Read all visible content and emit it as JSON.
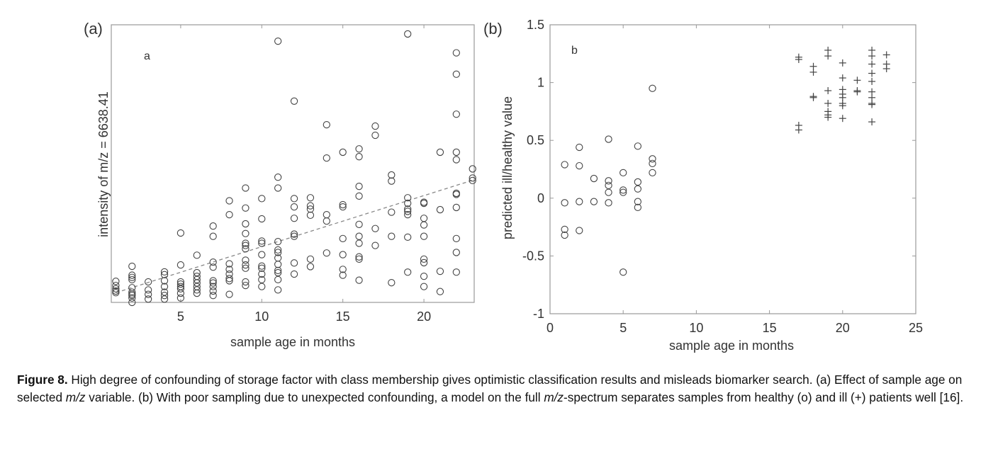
{
  "chart_data": [
    {
      "type": "scatter",
      "panel_label": "(a)",
      "inset_label": "a",
      "title": "",
      "xlabel": "sample age in months",
      "ylabel": "intensity of m/z = 6638.41",
      "xlim": [
        0.72,
        23.1
      ],
      "ylim": [
        0,
        1
      ],
      "y_units": "relative (no y tick labels shown)",
      "xticks": [
        5,
        10,
        15,
        20
      ],
      "yticks": [],
      "grid": false,
      "series": [
        {
          "name": "samples",
          "marker": "circle",
          "points": [
            [
              1,
              0.076
            ],
            [
              1,
              0.061
            ],
            [
              1,
              0.049
            ],
            [
              1,
              0.041
            ],
            [
              1,
              0.035
            ],
            [
              2,
              0.13
            ],
            [
              2,
              0.098
            ],
            [
              2,
              0.09
            ],
            [
              2,
              0.082
            ],
            [
              2,
              0.053
            ],
            [
              2,
              0.037
            ],
            [
              2,
              0.03
            ],
            [
              2,
              0.025
            ],
            [
              2,
              0.016
            ],
            [
              2,
              0.0
            ],
            [
              3,
              0.074
            ],
            [
              3,
              0.045
            ],
            [
              3,
              0.029
            ],
            [
              3,
              0.012
            ],
            [
              4,
              0.11
            ],
            [
              4,
              0.1
            ],
            [
              4,
              0.078
            ],
            [
              4,
              0.057
            ],
            [
              4,
              0.037
            ],
            [
              4,
              0.025
            ],
            [
              4,
              0.012
            ],
            [
              5,
              0.25
            ],
            [
              5,
              0.135
            ],
            [
              5,
              0.074
            ],
            [
              5,
              0.066
            ],
            [
              5,
              0.057
            ],
            [
              5,
              0.049
            ],
            [
              5,
              0.033
            ],
            [
              5,
              0.016
            ],
            [
              6,
              0.17
            ],
            [
              6,
              0.107
            ],
            [
              6,
              0.094
            ],
            [
              6,
              0.082
            ],
            [
              6,
              0.07
            ],
            [
              6,
              0.057
            ],
            [
              6,
              0.045
            ],
            [
              6,
              0.033
            ],
            [
              7,
              0.275
            ],
            [
              7,
              0.238
            ],
            [
              7,
              0.145
            ],
            [
              7,
              0.127
            ],
            [
              7,
              0.078
            ],
            [
              7,
              0.07
            ],
            [
              7,
              0.057
            ],
            [
              7,
              0.041
            ],
            [
              7,
              0.025
            ],
            [
              8,
              0.366
            ],
            [
              8,
              0.316
            ],
            [
              8,
              0.139
            ],
            [
              8,
              0.119
            ],
            [
              8,
              0.102
            ],
            [
              8,
              0.086
            ],
            [
              8,
              0.078
            ],
            [
              8,
              0.029
            ],
            [
              9,
              0.412
            ],
            [
              9,
              0.34
            ],
            [
              9,
              0.283
            ],
            [
              9,
              0.248
            ],
            [
              9,
              0.213
            ],
            [
              9,
              0.205
            ],
            [
              9,
              0.193
            ],
            [
              9,
              0.152
            ],
            [
              9,
              0.135
            ],
            [
              9,
              0.123
            ],
            [
              9,
              0.074
            ],
            [
              9,
              0.061
            ],
            [
              10,
              0.374
            ],
            [
              10,
              0.301
            ],
            [
              10,
              0.221
            ],
            [
              10,
              0.213
            ],
            [
              10,
              0.172
            ],
            [
              10,
              0.131
            ],
            [
              10,
              0.123
            ],
            [
              10,
              0.102
            ],
            [
              10,
              0.082
            ],
            [
              10,
              0.057
            ],
            [
              11,
              0.941
            ],
            [
              11,
              0.451
            ],
            [
              11,
              0.412
            ],
            [
              11,
              0.219
            ],
            [
              11,
              0.189
            ],
            [
              11,
              0.18
            ],
            [
              11,
              0.16
            ],
            [
              11,
              0.137
            ],
            [
              11,
              0.115
            ],
            [
              11,
              0.107
            ],
            [
              11,
              0.082
            ],
            [
              11,
              0.045
            ],
            [
              12,
              0.725
            ],
            [
              12,
              0.374
            ],
            [
              12,
              0.344
            ],
            [
              12,
              0.303
            ],
            [
              12,
              0.246
            ],
            [
              12,
              0.238
            ],
            [
              12,
              0.142
            ],
            [
              12,
              0.102
            ],
            [
              13,
              0.377
            ],
            [
              13,
              0.348
            ],
            [
              13,
              0.336
            ],
            [
              13,
              0.314
            ],
            [
              13,
              0.156
            ],
            [
              13,
              0.129
            ],
            [
              14,
              0.64
            ],
            [
              14,
              0.52
            ],
            [
              14,
              0.316
            ],
            [
              14,
              0.293
            ],
            [
              14,
              0.178
            ],
            [
              15,
              0.541
            ],
            [
              15,
              0.352
            ],
            [
              15,
              0.344
            ],
            [
              15,
              0.23
            ],
            [
              15,
              0.172
            ],
            [
              15,
              0.119
            ],
            [
              15,
              0.098
            ],
            [
              16,
              0.553
            ],
            [
              16,
              0.525
            ],
            [
              16,
              0.418
            ],
            [
              16,
              0.383
            ],
            [
              16,
              0.281
            ],
            [
              16,
              0.238
            ],
            [
              16,
              0.213
            ],
            [
              16,
              0.164
            ],
            [
              16,
              0.156
            ],
            [
              16,
              0.08
            ],
            [
              17,
              0.635
            ],
            [
              17,
              0.602
            ],
            [
              17,
              0.266
            ],
            [
              17,
              0.205
            ],
            [
              18,
              0.459
            ],
            [
              18,
              0.437
            ],
            [
              18,
              0.325
            ],
            [
              18,
              0.238
            ],
            [
              18,
              0.071
            ],
            [
              19,
              0.967
            ],
            [
              19,
              0.377
            ],
            [
              19,
              0.357
            ],
            [
              19,
              0.336
            ],
            [
              19,
              0.328
            ],
            [
              19,
              0.316
            ],
            [
              19,
              0.235
            ],
            [
              19,
              0.109
            ],
            [
              20,
              0.361
            ],
            [
              20,
              0.357
            ],
            [
              20,
              0.303
            ],
            [
              20,
              0.279
            ],
            [
              20,
              0.238
            ],
            [
              20,
              0.156
            ],
            [
              20,
              0.143
            ],
            [
              20,
              0.094
            ],
            [
              20,
              0.057
            ],
            [
              21,
              0.541
            ],
            [
              21,
              0.334
            ],
            [
              21,
              0.112
            ],
            [
              21,
              0.039
            ],
            [
              22,
              0.899
            ],
            [
              22,
              0.822
            ],
            [
              22,
              0.678
            ],
            [
              22,
              0.541
            ],
            [
              22,
              0.514
            ],
            [
              22,
              0.393
            ],
            [
              22,
              0.389
            ],
            [
              22,
              0.342
            ],
            [
              22,
              0.23
            ],
            [
              22,
              0.18
            ],
            [
              22,
              0.109
            ],
            [
              23,
              0.481
            ],
            [
              23,
              0.448
            ],
            [
              23,
              0.439
            ]
          ]
        }
      ],
      "trend_line": {
        "style": "dashed",
        "from": [
          1,
          0.035
        ],
        "to": [
          23,
          0.44
        ]
      }
    },
    {
      "type": "scatter",
      "panel_label": "(b)",
      "inset_label": "b",
      "title": "",
      "xlabel": "sample age in months",
      "ylabel": "predicted ill/healthy value",
      "xlim": [
        0,
        25
      ],
      "ylim": [
        -1,
        1.5
      ],
      "xticks": [
        0,
        5,
        10,
        15,
        20,
        25
      ],
      "yticks": [
        -1,
        -0.5,
        0,
        0.5,
        1,
        1.5
      ],
      "xtick_labels": [
        "0",
        "5",
        "10",
        "15",
        "20",
        "25"
      ],
      "ytick_labels": [
        "-1",
        "-0.5",
        "0",
        "0.5",
        "1",
        "1.5"
      ],
      "grid": false,
      "series": [
        {
          "name": "healthy (o)",
          "marker": "circle",
          "points": [
            [
              1,
              0.29
            ],
            [
              1,
              -0.04
            ],
            [
              1,
              -0.27
            ],
            [
              1,
              -0.32
            ],
            [
              2,
              0.44
            ],
            [
              2,
              0.28
            ],
            [
              2,
              -0.03
            ],
            [
              2,
              -0.28
            ],
            [
              3,
              0.17
            ],
            [
              3,
              -0.03
            ],
            [
              4,
              0.51
            ],
            [
              4,
              0.15
            ],
            [
              4,
              0.11
            ],
            [
              4,
              0.05
            ],
            [
              4,
              -0.04
            ],
            [
              5,
              0.22
            ],
            [
              5,
              0.07
            ],
            [
              5,
              0.05
            ],
            [
              5,
              -0.64
            ],
            [
              6,
              0.45
            ],
            [
              6,
              0.14
            ],
            [
              6,
              0.08
            ],
            [
              6,
              -0.03
            ],
            [
              6,
              -0.08
            ],
            [
              7,
              0.95
            ],
            [
              7,
              0.34
            ],
            [
              7,
              0.3
            ],
            [
              7,
              0.22
            ]
          ]
        },
        {
          "name": "ill (+)",
          "marker": "plus",
          "points": [
            [
              17,
              1.22
            ],
            [
              17,
              1.2
            ],
            [
              17,
              0.63
            ],
            [
              17,
              0.59
            ],
            [
              18,
              1.14
            ],
            [
              18,
              1.09
            ],
            [
              18,
              0.88
            ],
            [
              18,
              0.87
            ],
            [
              19,
              1.28
            ],
            [
              19,
              1.23
            ],
            [
              19,
              0.93
            ],
            [
              19,
              0.82
            ],
            [
              19,
              0.75
            ],
            [
              19,
              0.72
            ],
            [
              19,
              0.7
            ],
            [
              20,
              1.17
            ],
            [
              20,
              1.04
            ],
            [
              20,
              0.94
            ],
            [
              20,
              0.9
            ],
            [
              20,
              0.87
            ],
            [
              20,
              0.82
            ],
            [
              20,
              0.8
            ],
            [
              20,
              0.69
            ],
            [
              21,
              1.02
            ],
            [
              21,
              0.93
            ],
            [
              21,
              0.92
            ],
            [
              22,
              1.28
            ],
            [
              22,
              1.23
            ],
            [
              22,
              1.16
            ],
            [
              22,
              1.08
            ],
            [
              22,
              1.01
            ],
            [
              22,
              0.92
            ],
            [
              22,
              0.87
            ],
            [
              22,
              0.82
            ],
            [
              22,
              0.81
            ],
            [
              22,
              0.66
            ],
            [
              23,
              1.24
            ],
            [
              23,
              1.16
            ],
            [
              23,
              1.12
            ]
          ]
        }
      ]
    }
  ],
  "caption": {
    "label": "Figure 8.",
    "t1": " High degree of confounding of storage factor with class membership gives optimistic classification results and misleads biomarker search. (a) Effect of sample age on selected ",
    "mz1": "m/z",
    "t2": " variable. (b) With poor sampling due to unexpected confounding, a model on the full ",
    "mz2": "m/z",
    "t3": "-spectrum separates samples from healthy (o) and ill (+) patients well [16]."
  },
  "colors": {
    "marker": "#444444",
    "axis": "#888888",
    "trend": "#888888"
  }
}
